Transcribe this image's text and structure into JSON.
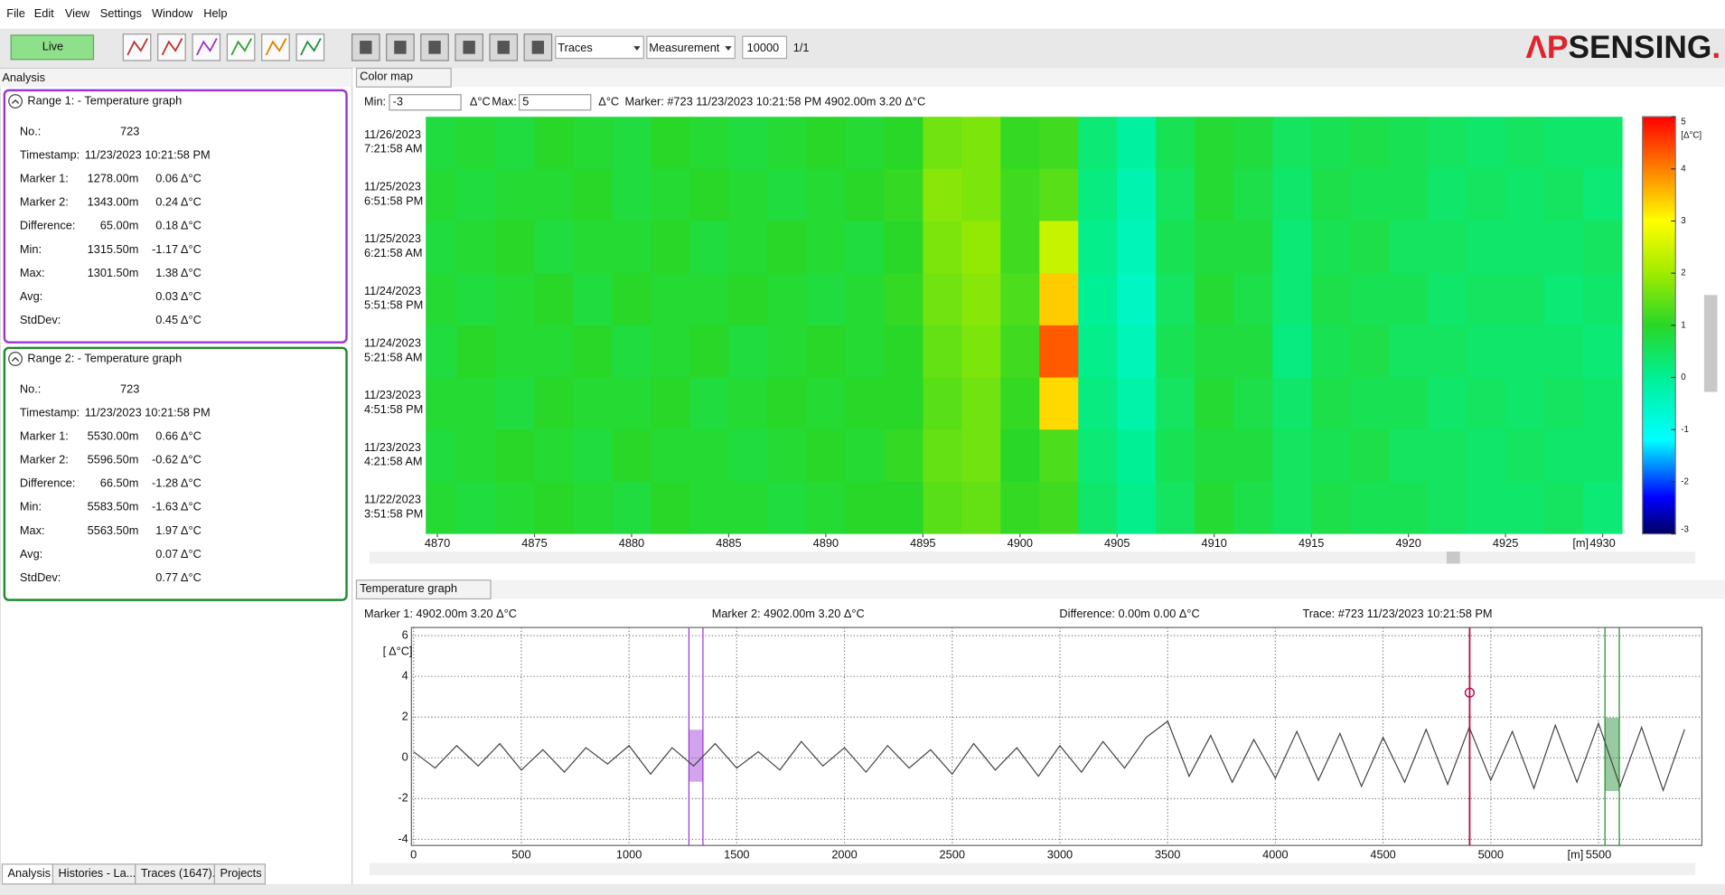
{
  "menu": [
    "File",
    "Edit",
    "View",
    "Settings",
    "Window",
    "Help"
  ],
  "toolbar": {
    "live": "Live",
    "traces": "Traces",
    "measurement": "Measurement",
    "count": "10000",
    "page": "1/1",
    "logo": [
      "ΛP",
      "SENSING",
      "."
    ]
  },
  "analysis": {
    "title": "Analysis",
    "ranges": [
      {
        "title": "Range 1: - Temperature graph",
        "color": "#9b35d6",
        "rows": [
          {
            "label": "No.:",
            "value": "723"
          },
          {
            "label": "Timestamp:",
            "value": "11/23/2023 10:21:58 PM"
          },
          {
            "label": "Marker 1:",
            "value": "1278.00m",
            "delta": "0.06 Δ°C"
          },
          {
            "label": "Marker 2:",
            "value": "1343.00m",
            "delta": "0.24 Δ°C"
          },
          {
            "label": "Difference:",
            "value": "65.00m",
            "delta": "0.18 Δ°C"
          },
          {
            "label": "Min:",
            "value": "1315.50m",
            "delta": "-1.17 Δ°C"
          },
          {
            "label": "Max:",
            "value": "1301.50m",
            "delta": "1.38 Δ°C"
          },
          {
            "label": "Avg:",
            "delta": "0.03 Δ°C"
          },
          {
            "label": "StdDev:",
            "delta": "0.45 Δ°C"
          }
        ]
      },
      {
        "title": "Range 2: - Temperature graph",
        "color": "#1f8a2e",
        "rows": [
          {
            "label": "No.:",
            "value": "723"
          },
          {
            "label": "Timestamp:",
            "value": "11/23/2023 10:21:58 PM"
          },
          {
            "label": "Marker 1:",
            "value": "5530.00m",
            "delta": "0.66 Δ°C"
          },
          {
            "label": "Marker 2:",
            "value": "5596.50m",
            "delta": "-0.62 Δ°C"
          },
          {
            "label": "Difference:",
            "value": "66.50m",
            "delta": "-1.28 Δ°C"
          },
          {
            "label": "Min:",
            "value": "5583.50m",
            "delta": "-1.63 Δ°C"
          },
          {
            "label": "Max:",
            "value": "5563.50m",
            "delta": "1.97 Δ°C"
          },
          {
            "label": "Avg:",
            "delta": "0.07 Δ°C"
          },
          {
            "label": "StdDev:",
            "delta": "0.77 Δ°C"
          }
        ]
      }
    ]
  },
  "tabs": [
    "Analysis",
    "Histories - La...",
    "Traces (1647)...",
    "Projects"
  ],
  "color_map": {
    "tab": "Color map",
    "min_label": "Min:",
    "min_value": -3,
    "unit": "Δ°C",
    "max_label": "Max:",
    "max_value": 5,
    "marker": "Marker: #723 11/23/2023 10:21:58 PM 4902.00m 3.20 Δ°C",
    "row_labels": [
      [
        "11/26/2023",
        "7:21:58 AM"
      ],
      [
        "11/25/2023",
        "6:51:58 PM"
      ],
      [
        "11/25/2023",
        "6:21:58 AM"
      ],
      [
        "11/24/2023",
        "5:51:58 PM"
      ],
      [
        "11/24/2023",
        "5:21:58 AM"
      ],
      [
        "11/23/2023",
        "4:51:58 PM"
      ],
      [
        "11/23/2023",
        "4:21:58 AM"
      ],
      [
        "11/22/2023",
        "3:51:58 PM"
      ]
    ],
    "x": [
      4870,
      4872,
      4874,
      4876,
      4878,
      4880,
      4882,
      4884,
      4886,
      4888,
      4890,
      4892,
      4894,
      4896,
      4898,
      4900,
      4902,
      4904,
      4906,
      4908,
      4910,
      4912,
      4914,
      4916,
      4918,
      4920,
      4922,
      4924,
      4926,
      4928,
      4930
    ],
    "values": [
      [
        0.8,
        0.9,
        0.8,
        1.0,
        0.9,
        0.8,
        1.0,
        0.9,
        0.8,
        0.9,
        1.0,
        0.9,
        1.0,
        1.6,
        1.7,
        1.1,
        1.2,
        0.3,
        -0.1,
        0.6,
        0.9,
        0.8,
        0.5,
        0.6,
        0.7,
        0.6,
        0.5,
        0.4,
        0.5,
        0.4,
        0.4
      ],
      [
        0.9,
        0.8,
        0.9,
        0.9,
        1.0,
        0.8,
        0.9,
        1.0,
        0.9,
        0.8,
        0.9,
        1.0,
        1.1,
        1.8,
        1.7,
        1.2,
        1.4,
        0.2,
        -0.3,
        0.5,
        0.9,
        0.7,
        0.4,
        0.7,
        0.6,
        0.6,
        0.4,
        0.5,
        0.4,
        0.5,
        0.3
      ],
      [
        0.8,
        0.9,
        1.0,
        0.8,
        0.9,
        0.9,
        1.0,
        0.8,
        0.9,
        1.0,
        0.9,
        0.8,
        1.0,
        1.7,
        1.9,
        1.2,
        2.4,
        0.1,
        -0.4,
        0.6,
        0.8,
        0.8,
        0.3,
        0.6,
        0.7,
        0.5,
        0.5,
        0.4,
        0.4,
        0.4,
        0.5
      ],
      [
        0.9,
        0.8,
        0.9,
        1.0,
        0.8,
        1.0,
        0.9,
        0.9,
        1.0,
        0.9,
        0.8,
        0.9,
        1.1,
        1.6,
        1.8,
        1.3,
        3.4,
        0.0,
        -0.5,
        0.5,
        0.9,
        0.7,
        0.3,
        0.7,
        0.6,
        0.6,
        0.4,
        0.5,
        0.5,
        0.3,
        0.4
      ],
      [
        0.8,
        1.0,
        0.9,
        0.9,
        1.0,
        0.8,
        0.9,
        1.0,
        0.8,
        0.9,
        1.0,
        0.9,
        1.0,
        1.5,
        1.7,
        1.2,
        4.3,
        0.1,
        -0.4,
        0.6,
        0.8,
        0.8,
        0.2,
        0.6,
        0.7,
        0.5,
        0.5,
        0.4,
        0.4,
        0.4,
        0.3
      ],
      [
        0.9,
        0.9,
        0.8,
        1.0,
        0.9,
        0.9,
        1.0,
        0.8,
        0.9,
        1.0,
        0.9,
        1.0,
        1.0,
        1.4,
        1.6,
        1.1,
        3.3,
        0.2,
        -0.2,
        0.5,
        0.9,
        0.7,
        0.4,
        0.7,
        0.6,
        0.6,
        0.4,
        0.5,
        0.4,
        0.5,
        0.4
      ],
      [
        0.8,
        0.9,
        1.0,
        0.9,
        0.8,
        1.0,
        0.9,
        0.9,
        0.8,
        0.9,
        1.0,
        0.9,
        1.1,
        1.5,
        1.6,
        1.0,
        1.3,
        0.3,
        0.0,
        0.6,
        0.8,
        0.8,
        0.5,
        0.6,
        0.7,
        0.5,
        0.5,
        0.4,
        0.5,
        0.4,
        0.4
      ],
      [
        0.9,
        0.8,
        0.9,
        1.0,
        0.9,
        0.8,
        1.0,
        0.9,
        0.9,
        0.8,
        0.9,
        1.0,
        1.0,
        1.4,
        1.5,
        1.1,
        1.2,
        0.4,
        0.1,
        0.5,
        0.9,
        0.7,
        0.5,
        0.7,
        0.6,
        0.6,
        0.5,
        0.4,
        0.4,
        0.5,
        0.3
      ]
    ],
    "xlim": [
      4869.4,
      4931.6
    ],
    "xticks": [
      4870,
      4875,
      4880,
      4885,
      4890,
      4895,
      4900,
      4905,
      4910,
      4915,
      4920,
      4925,
      4930
    ],
    "x_unit": "[m]",
    "colorbar_ticks": [
      -3,
      -2,
      -1,
      0,
      1,
      2,
      3,
      4,
      5
    ],
    "colorbar_label": "[Δ°C]"
  },
  "temperature_graph": {
    "type": "line",
    "tab": "Temperature graph",
    "marker1": "Marker 1: 4902.00m 3.20 Δ°C",
    "marker2": "Marker 2: 4902.00m 3.20 Δ°C",
    "difference": "Difference: 0.00m 0.00 Δ°C",
    "trace": "Trace: #723 11/23/2023 10:21:58 PM",
    "y_label": "[ Δ°C]",
    "x_unit": "[m]",
    "xlim": [
      -10,
      5980
    ],
    "ylim": [
      -4.3,
      6.4
    ],
    "xticks": [
      0,
      500,
      1000,
      1500,
      2000,
      2500,
      3000,
      3500,
      4000,
      4500,
      5000,
      5500
    ],
    "yticks": [
      -4,
      -2,
      0,
      2,
      4,
      6
    ],
    "grid": true,
    "series": [
      {
        "color": "#444444",
        "x": [
          0,
          100,
          200,
          300,
          400,
          500,
          600,
          700,
          800,
          900,
          1000,
          1100,
          1200,
          1300,
          1400,
          1500,
          1600,
          1700,
          1800,
          1900,
          2000,
          2100,
          2200,
          2300,
          2400,
          2500,
          2600,
          2700,
          2800,
          2900,
          3000,
          3100,
          3200,
          3300,
          3400,
          3500,
          3600,
          3700,
          3800,
          3900,
          4000,
          4100,
          4200,
          4300,
          4400,
          4500,
          4600,
          4700,
          4800,
          4900,
          5000,
          5100,
          5200,
          5300,
          5400,
          5500,
          5600,
          5700,
          5800,
          5900
        ],
        "values": [
          0.3,
          -0.5,
          0.6,
          -0.4,
          0.7,
          -0.6,
          0.4,
          -0.7,
          0.5,
          -0.3,
          0.6,
          -0.8,
          0.5,
          -0.4,
          0.7,
          -0.5,
          0.3,
          -0.6,
          0.8,
          -0.4,
          0.5,
          -0.7,
          0.6,
          -0.5,
          0.4,
          -0.8,
          0.7,
          -0.6,
          0.5,
          -0.9,
          0.6,
          -0.7,
          0.8,
          -0.5,
          1.0,
          1.8,
          -0.9,
          1.1,
          -1.2,
          0.9,
          -1.0,
          1.3,
          -1.1,
          1.2,
          -1.4,
          1.0,
          -1.2,
          1.4,
          -1.3,
          1.5,
          -1.1,
          1.3,
          -1.5,
          1.6,
          -1.2,
          1.7,
          -1.4,
          1.5,
          -1.6,
          1.4
        ]
      }
    ],
    "ranges": [
      {
        "x": [
          1278,
          1343
        ],
        "y": [
          -1.17,
          1.38
        ]
      },
      {
        "x": [
          5530,
          5596.5
        ],
        "y": [
          -1.63,
          1.97
        ]
      }
    ],
    "marker": {
      "x": 4902,
      "y": 3.2,
      "color": "#b0124e"
    }
  }
}
